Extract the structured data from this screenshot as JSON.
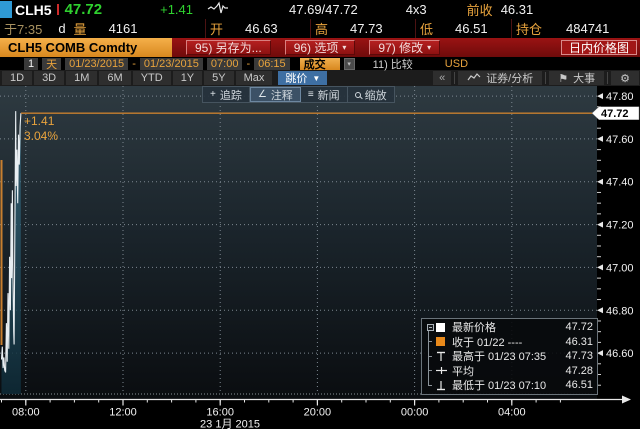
{
  "colors": {
    "amber": "#e8a33d",
    "green": "#2fd12f",
    "red_bar": "#8c1010",
    "tab_blue": "#3e6fa3",
    "security_box": "#e9a338",
    "line": "#e8eef2",
    "last_line": "#c87f2f"
  },
  "quote": {
    "ticker": "CLH5",
    "last": "47.72",
    "change": "+1.41",
    "bid_ask": "47.69/47.72",
    "lot": "4x3",
    "prev_close_label": "前收",
    "prev_close": "46.31",
    "at_label": "于7:35",
    "d_flag": "d",
    "vol_label": "量",
    "volume": "4161",
    "open_label": "开",
    "open": "46.63",
    "high_label": "高",
    "high": "47.73",
    "low_label": "低",
    "low": "46.51",
    "oi_label": "持仓",
    "open_interest": "484741"
  },
  "titlebar": {
    "security": "CLH5 COMB Comdty",
    "save_as": "95) 另存为...",
    "options": "96) 选项",
    "edit": "97) 修改",
    "title": "日内价格图"
  },
  "fieldbar": {
    "range_value": "1",
    "range_unit": "天",
    "date_from": "01/23/2015",
    "date_to": "01/23/2015",
    "time_from": "07:00",
    "time_to": "06:15",
    "dash": "-",
    "field": "成交",
    "compare": "11) 比较",
    "currency": "USD"
  },
  "tabbar": {
    "tabs": [
      "1D",
      "3D",
      "1M",
      "6M",
      "YTD",
      "1Y",
      "5Y",
      "Max"
    ],
    "tick_dropdown": "跳价",
    "collapse": "«",
    "security_analysis": "证券/分析",
    "events": "大事"
  },
  "chart_toolbar": {
    "track": "追踪",
    "annotate": "注释",
    "news": "新闻",
    "zoom": "缩放"
  },
  "annotation": {
    "change": "+1.41",
    "pct": "3.04%"
  },
  "legend": {
    "rows": [
      {
        "icon": "white-square",
        "label": "最新价格",
        "value": "47.72"
      },
      {
        "icon": "orange-square",
        "label": "收于 01/22 ----",
        "value": "46.31"
      },
      {
        "icon": "high-whisker",
        "label": "最高于 01/23 07:35",
        "value": "47.73"
      },
      {
        "icon": "average",
        "label": "平均",
        "value": "47.28"
      },
      {
        "icon": "low-whisker",
        "label": "最低于 01/23 07:10",
        "value": "46.51"
      }
    ]
  },
  "chart_data": {
    "type": "area",
    "title": "日内价格图",
    "x_unit": "minutes from 07:00 session start",
    "date_label": "23 1月 2015",
    "ylim": [
      46.409,
      47.847
    ],
    "y_major_step": 0.2,
    "y_minor_step": 0.05,
    "y_ticks": [
      47.8,
      47.6,
      47.4,
      47.2,
      47.0,
      46.8,
      46.6
    ],
    "x_ticks": [
      {
        "label": "08:00",
        "min": 60
      },
      {
        "label": "12:00",
        "min": 300
      },
      {
        "label": "16:00",
        "min": 540
      },
      {
        "label": "20:00",
        "min": 780
      },
      {
        "label": "00:00",
        "min": 1020
      },
      {
        "label": "04:00",
        "min": 1260
      }
    ],
    "x_minor_step_min": 60,
    "session_minutes": 1395,
    "grid": true,
    "last_price": 47.72,
    "prev_close": 46.31,
    "high": {
      "time": "01/23 07:35",
      "value": 47.73
    },
    "low": {
      "time": "01/23 07:10",
      "value": 46.51
    },
    "average": 47.28,
    "series": [
      {
        "name": "最新价格",
        "points": [
          [
            0,
            46.57
          ],
          [
            2,
            46.63
          ],
          [
            4,
            46.53
          ],
          [
            6,
            46.58
          ],
          [
            8,
            46.52
          ],
          [
            10,
            46.51
          ],
          [
            12,
            46.74
          ],
          [
            14,
            46.56
          ],
          [
            16,
            46.88
          ],
          [
            18,
            46.62
          ],
          [
            20,
            47.05
          ],
          [
            22,
            46.8
          ],
          [
            24,
            47.3
          ],
          [
            25,
            46.95
          ],
          [
            27,
            47.36
          ],
          [
            28,
            47.02
          ],
          [
            30,
            46.7
          ],
          [
            31,
            46.64
          ],
          [
            33,
            47.2
          ],
          [
            35,
            47.73
          ],
          [
            36,
            47.38
          ],
          [
            38,
            47.55
          ],
          [
            40,
            47.3
          ],
          [
            42,
            47.62
          ],
          [
            44,
            47.48
          ],
          [
            46,
            47.66
          ],
          [
            48,
            47.72
          ]
        ]
      }
    ]
  }
}
